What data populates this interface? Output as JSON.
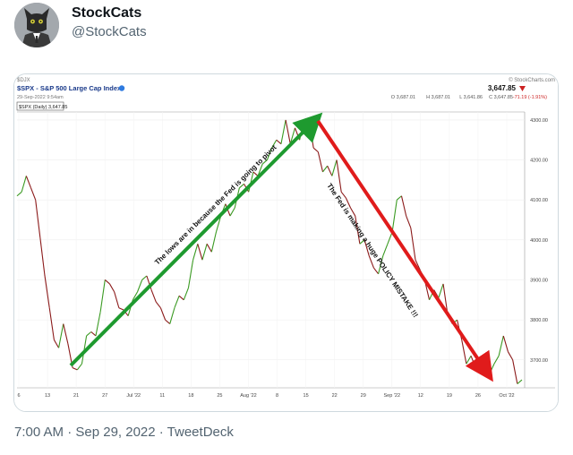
{
  "tweet": {
    "display_name": "StockCats",
    "handle": "@StockCats",
    "timestamp": "7:00 AM · Sep 29, 2022 · TweetDeck"
  },
  "chart_data": {
    "type": "line",
    "source_label": "© StockCharts.com",
    "exchange_label": "$DJX",
    "title": "$SPX - S&P 500 Large Cap Index",
    "subtitle": "29-Sep-2022 9:54am",
    "last_price": "3,647.85",
    "change": "-71.19 (-1.91%)",
    "ohlc": [
      "O 3,687.01",
      "H 3,687.01",
      "L 3,641.86",
      "C 3,647.85",
      "-71.19 (-1.91%)"
    ],
    "legend": "$SPX (Daily) 3,647.85",
    "y_ticks": [
      3700,
      3800,
      3900,
      4000,
      4100,
      4200,
      4300
    ],
    "y_tick_labels": [
      "3700.00",
      "3800.00",
      "3900.00",
      "4000.00",
      "4100.00",
      "4200.00",
      "4300.00"
    ],
    "ylim": [
      3630,
      4320
    ],
    "x_ticks": [
      "6",
      "13",
      "21",
      "27",
      "Jul '22",
      "11",
      "18",
      "25",
      "Aug '22",
      "8",
      "15",
      "22",
      "29",
      "Sep '22",
      "12",
      "19",
      "26",
      "Oct '22"
    ],
    "series": [
      {
        "values": [
          4110,
          4120,
          4160,
          4130,
          4100,
          4005,
          3910,
          3830,
          3750,
          3730,
          3790,
          3740,
          3680,
          3675,
          3690,
          3760,
          3770,
          3760,
          3820,
          3900,
          3890,
          3870,
          3830,
          3825,
          3810,
          3850,
          3870,
          3900,
          3910,
          3875,
          3845,
          3830,
          3800,
          3790,
          3830,
          3860,
          3850,
          3880,
          3950,
          3990,
          3950,
          3990,
          3970,
          4020,
          4060,
          4090,
          4060,
          4080,
          4130,
          4140,
          4120,
          4170,
          4160,
          4190,
          4200,
          4230,
          4250,
          4240,
          4300,
          4240,
          4280,
          4250,
          4300,
          4305,
          4230,
          4220,
          4170,
          4185,
          4160,
          4200,
          4120,
          4105,
          4080,
          4060,
          3990,
          4000,
          3960,
          3930,
          3915,
          3960,
          3990,
          4020,
          4100,
          4110,
          4060,
          4030,
          3950,
          3925,
          3900,
          3850,
          3875,
          3855,
          3890,
          3810,
          3790,
          3800,
          3750,
          3690,
          3710,
          3680,
          3670,
          3660,
          3665,
          3690,
          3710,
          3760,
          3720,
          3700,
          3640,
          3650
        ]
      }
    ],
    "annotations": [
      "The lows are in because the Fed is going to pivot",
      "The Fed is making a huge POLICY MISTAKE !!!"
    ]
  }
}
